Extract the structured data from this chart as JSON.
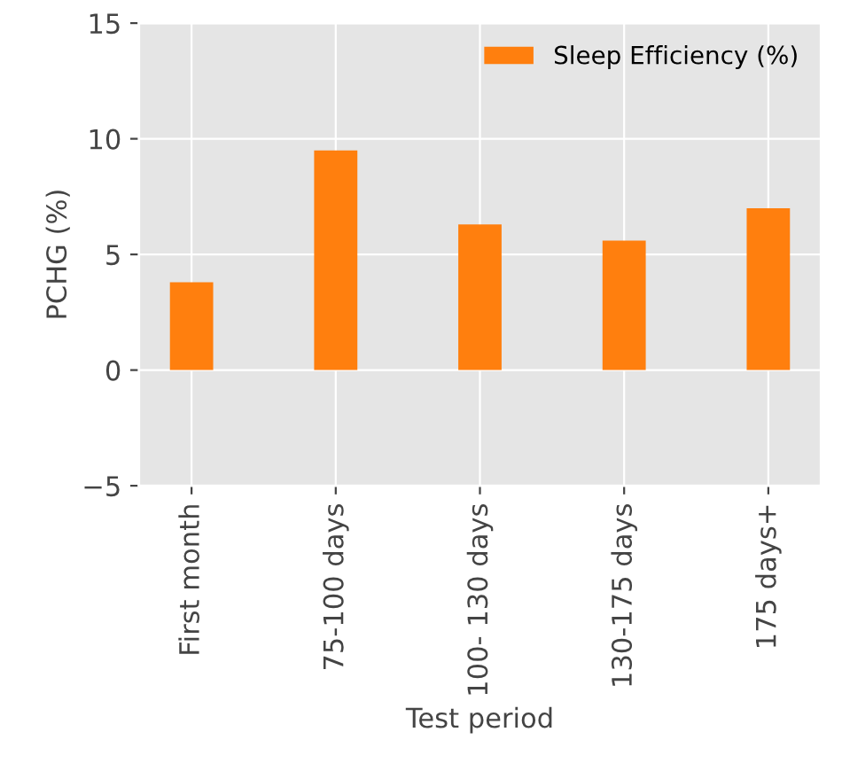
{
  "chart_data": {
    "type": "bar",
    "xlabel": "Test period",
    "ylabel": "PCHG (%)",
    "categories": [
      "First month",
      "75-100 days",
      "100- 130 days",
      "130-175 days",
      "175 days+"
    ],
    "series": [
      {
        "name": "Sleep Efficiency (%)",
        "color": "#ff7f0e",
        "values": [
          3.8,
          9.5,
          6.3,
          5.6,
          7.0
        ]
      }
    ],
    "ylim": [
      -5,
      15
    ],
    "yticks": [
      {
        "value": -5,
        "label": "−5"
      },
      0,
      5,
      10,
      15
    ],
    "grid": true,
    "legend": "top right"
  }
}
